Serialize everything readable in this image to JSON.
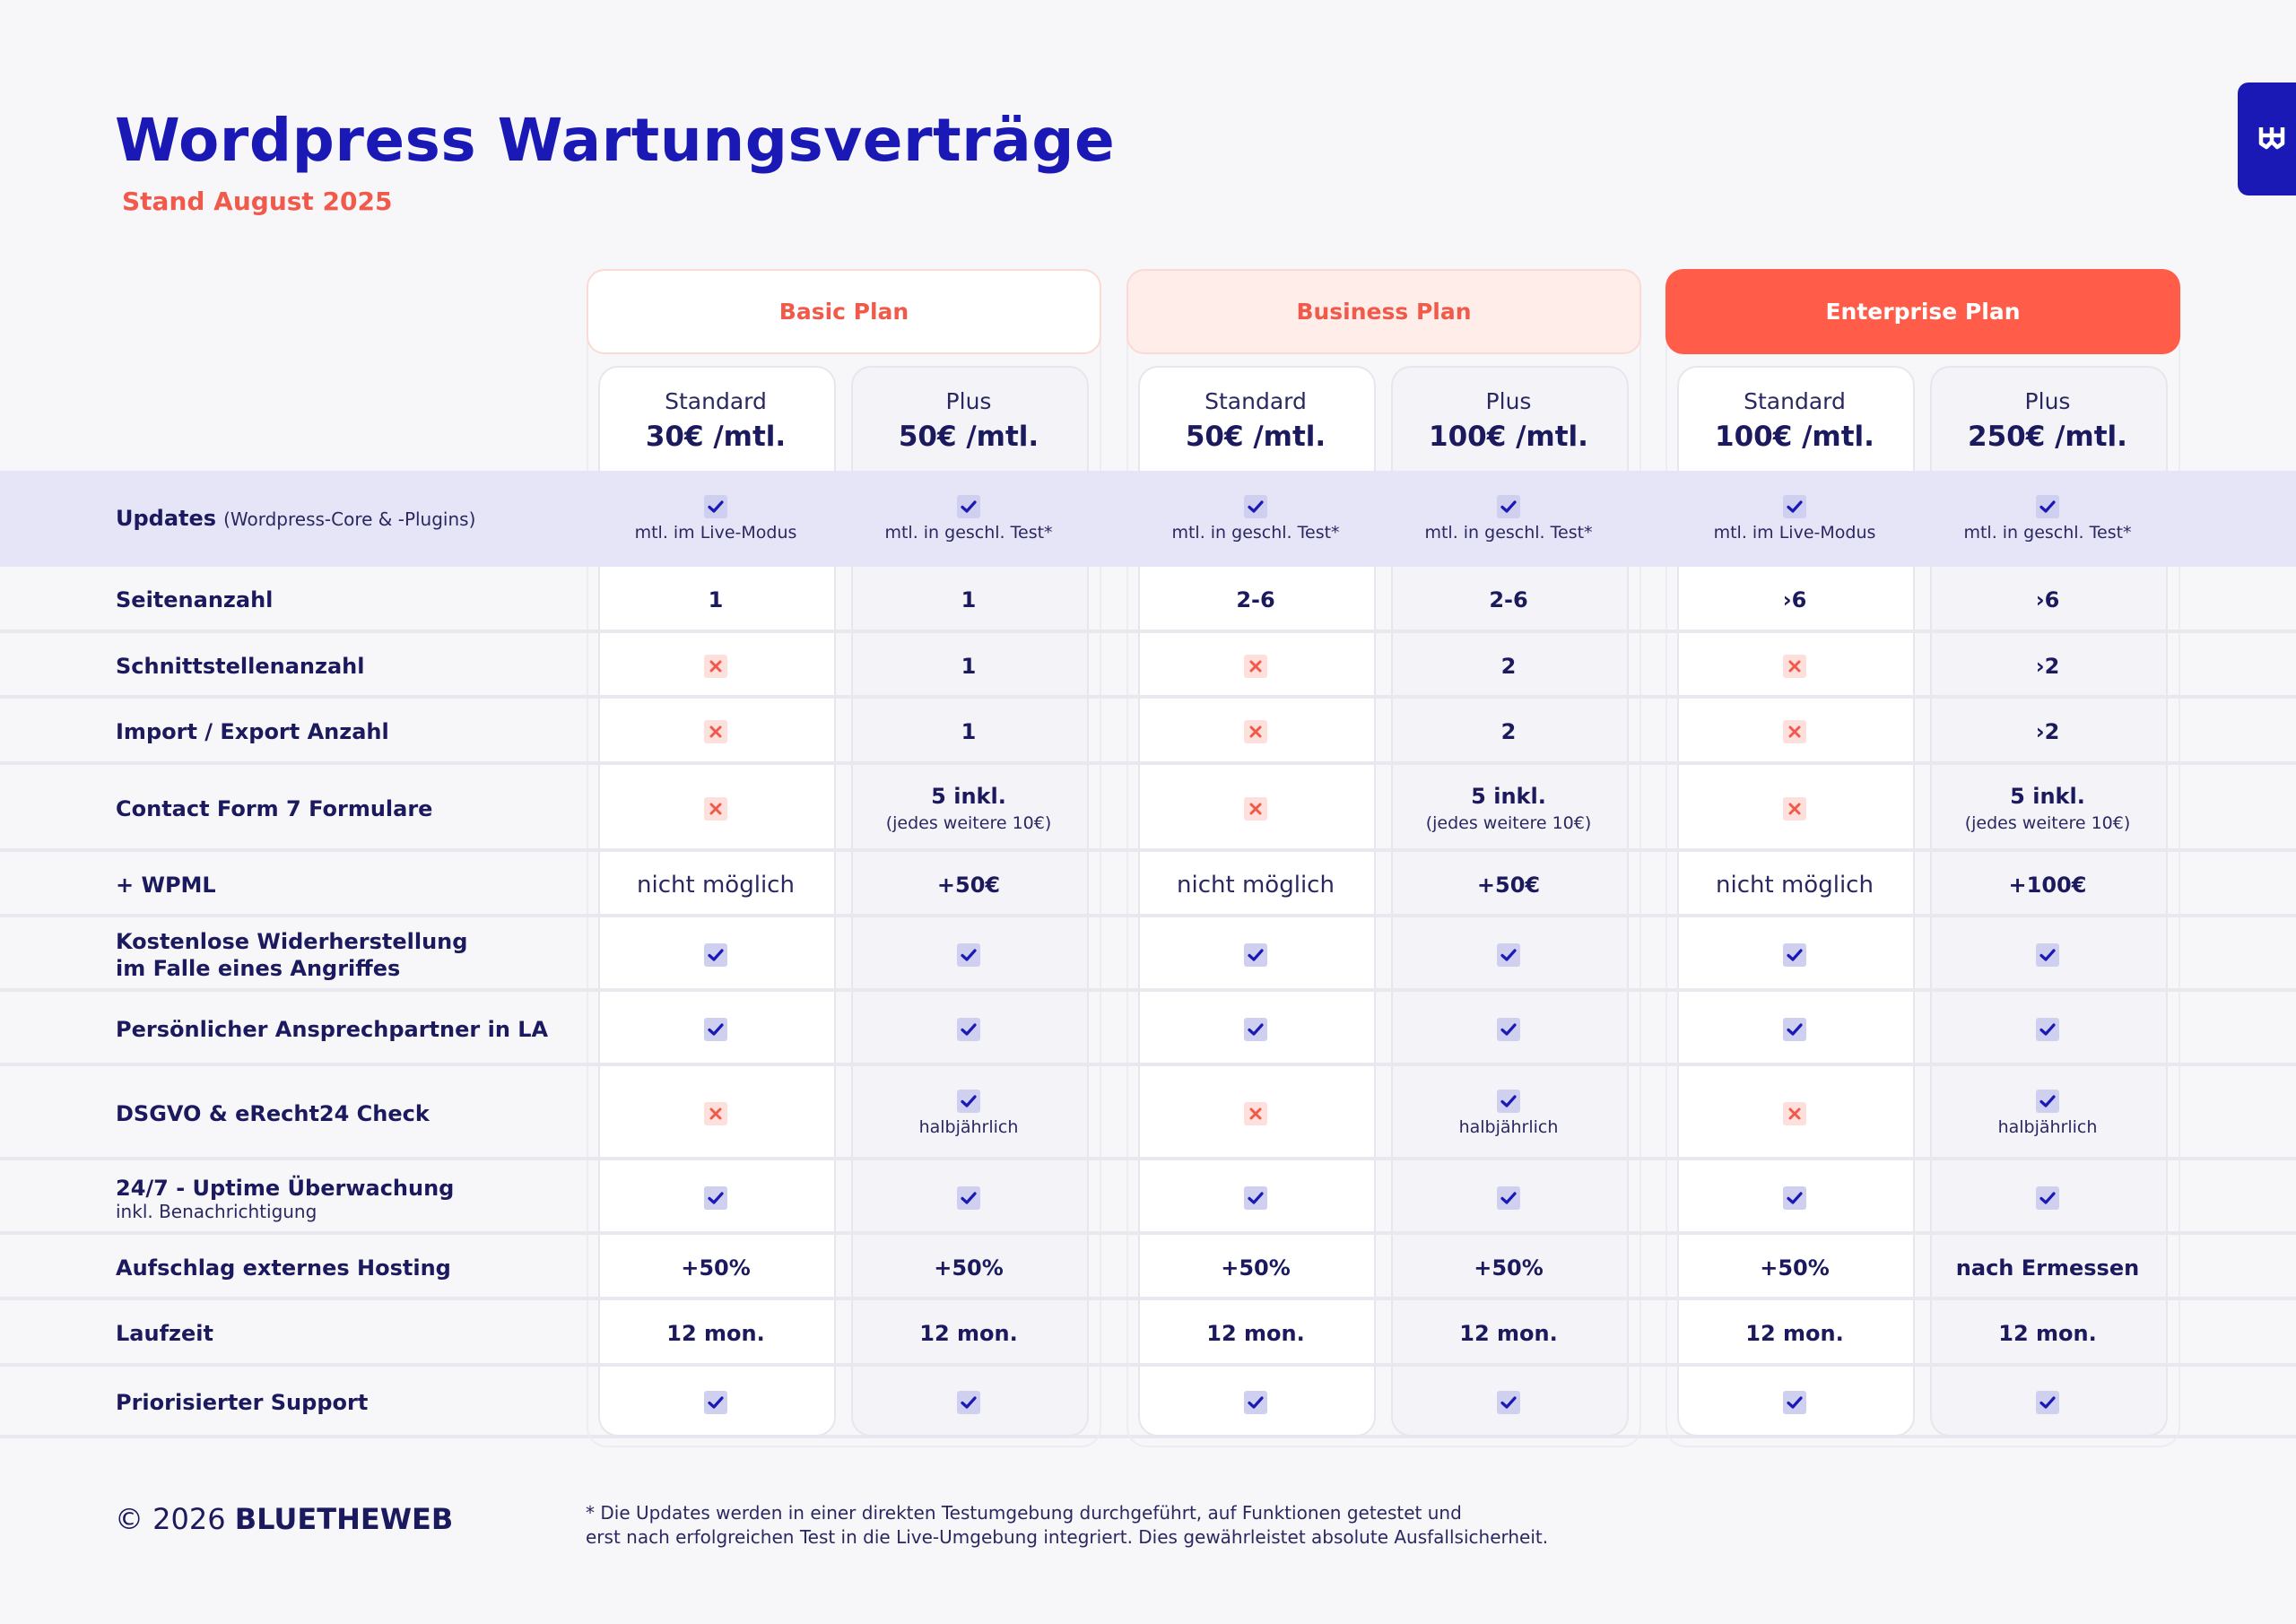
{
  "header": {
    "title": "Wordpress Wartungsverträge",
    "subtitle": "Stand August 2025",
    "brand_icon": "w-logo-icon"
  },
  "plans": [
    {
      "name": "Basic Plan",
      "tiers": [
        {
          "name": "Standard",
          "price": "30€ /mtl."
        },
        {
          "name": "Plus",
          "price": "50€ /mtl."
        }
      ]
    },
    {
      "name": "Business Plan",
      "tiers": [
        {
          "name": "Standard",
          "price": "50€ /mtl."
        },
        {
          "name": "Plus",
          "price": "100€ /mtl."
        }
      ]
    },
    {
      "name": "Enterprise Plan",
      "tiers": [
        {
          "name": "Standard",
          "price": "100€ /mtl."
        },
        {
          "name": "Plus",
          "price": "250€ /mtl."
        }
      ]
    }
  ],
  "rows": [
    {
      "label": "Updates",
      "inline_sub": "(Wordpress-Core & -Plugins)",
      "sub": "",
      "cells": [
        {
          "type": "check",
          "note": "mtl. im Live-Modus"
        },
        {
          "type": "check",
          "note": "mtl. in geschl. Test*"
        },
        {
          "type": "check",
          "note": "mtl. in geschl. Test*"
        },
        {
          "type": "check",
          "note": "mtl. in geschl. Test*"
        },
        {
          "type": "check",
          "note": "mtl. im Live-Modus"
        },
        {
          "type": "check",
          "note": "mtl. in geschl. Test*"
        }
      ]
    },
    {
      "label": "Seitenanzahl",
      "inline_sub": "",
      "sub": "",
      "cells": [
        {
          "type": "value",
          "value": "1"
        },
        {
          "type": "value",
          "value": "1"
        },
        {
          "type": "value",
          "value": "2-6"
        },
        {
          "type": "value",
          "value": "2-6"
        },
        {
          "type": "value",
          "value": "›6"
        },
        {
          "type": "value",
          "value": "›6"
        }
      ]
    },
    {
      "label": "Schnittstellenanzahl",
      "inline_sub": "",
      "sub": "",
      "cells": [
        {
          "type": "cross"
        },
        {
          "type": "value",
          "value": "1"
        },
        {
          "type": "cross"
        },
        {
          "type": "value",
          "value": "2"
        },
        {
          "type": "cross"
        },
        {
          "type": "value",
          "value": "›2"
        }
      ]
    },
    {
      "label": "Import / Export Anzahl",
      "inline_sub": "",
      "sub": "",
      "cells": [
        {
          "type": "cross"
        },
        {
          "type": "value",
          "value": "1"
        },
        {
          "type": "cross"
        },
        {
          "type": "value",
          "value": "2"
        },
        {
          "type": "cross"
        },
        {
          "type": "value",
          "value": "›2"
        }
      ]
    },
    {
      "label": "Contact Form 7 Formulare",
      "inline_sub": "",
      "sub": "",
      "cells": [
        {
          "type": "cross"
        },
        {
          "type": "value",
          "value": "5 inkl.",
          "note": "(jedes weitere 10€)"
        },
        {
          "type": "cross"
        },
        {
          "type": "value",
          "value": "5 inkl.",
          "note": "(jedes weitere 10€)"
        },
        {
          "type": "cross"
        },
        {
          "type": "value",
          "value": "5 inkl.",
          "note": "(jedes weitere 10€)"
        }
      ]
    },
    {
      "label": "+ WPML",
      "inline_sub": "",
      "sub": "",
      "cells": [
        {
          "type": "text",
          "value": "nicht möglich"
        },
        {
          "type": "value",
          "value": "+50€"
        },
        {
          "type": "text",
          "value": "nicht möglich"
        },
        {
          "type": "value",
          "value": "+50€"
        },
        {
          "type": "text",
          "value": "nicht möglich"
        },
        {
          "type": "value",
          "value": "+100€"
        }
      ]
    },
    {
      "label": "Kostenlose Widerherstellung",
      "label2": "im Falle eines Angriffes",
      "inline_sub": "",
      "sub": "",
      "cells": [
        {
          "type": "check"
        },
        {
          "type": "check"
        },
        {
          "type": "check"
        },
        {
          "type": "check"
        },
        {
          "type": "check"
        },
        {
          "type": "check"
        }
      ]
    },
    {
      "label": "Persönlicher Ansprechpartner in LA",
      "inline_sub": "",
      "sub": "",
      "cells": [
        {
          "type": "check"
        },
        {
          "type": "check"
        },
        {
          "type": "check"
        },
        {
          "type": "check"
        },
        {
          "type": "check"
        },
        {
          "type": "check"
        }
      ]
    },
    {
      "label": "DSGVO & eRecht24 Check",
      "inline_sub": "",
      "sub": "",
      "cells": [
        {
          "type": "cross"
        },
        {
          "type": "check",
          "note": "halbjährlich"
        },
        {
          "type": "cross"
        },
        {
          "type": "check",
          "note": "halbjährlich"
        },
        {
          "type": "cross"
        },
        {
          "type": "check",
          "note": "halbjährlich"
        }
      ]
    },
    {
      "label": "24/7 - Uptime Überwachung",
      "inline_sub": "",
      "sub": "inkl. Benachrichtigung",
      "cells": [
        {
          "type": "check"
        },
        {
          "type": "check"
        },
        {
          "type": "check"
        },
        {
          "type": "check"
        },
        {
          "type": "check"
        },
        {
          "type": "check"
        }
      ]
    },
    {
      "label": "Aufschlag externes Hosting",
      "inline_sub": "",
      "sub": "",
      "cells": [
        {
          "type": "value",
          "value": "+50%"
        },
        {
          "type": "value",
          "value": "+50%"
        },
        {
          "type": "value",
          "value": "+50%"
        },
        {
          "type": "value",
          "value": "+50%"
        },
        {
          "type": "value",
          "value": "+50%"
        },
        {
          "type": "value",
          "value": "nach Ermessen"
        }
      ]
    },
    {
      "label": "Laufzeit",
      "inline_sub": "",
      "sub": "",
      "cells": [
        {
          "type": "value",
          "value": "12 mon."
        },
        {
          "type": "value",
          "value": "12 mon."
        },
        {
          "type": "value",
          "value": "12 mon."
        },
        {
          "type": "value",
          "value": "12 mon."
        },
        {
          "type": "value",
          "value": "12 mon."
        },
        {
          "type": "value",
          "value": "12 mon."
        }
      ]
    },
    {
      "label": "Priorisierter Support",
      "inline_sub": "",
      "sub": "",
      "cells": [
        {
          "type": "check"
        },
        {
          "type": "check"
        },
        {
          "type": "check"
        },
        {
          "type": "check"
        },
        {
          "type": "check"
        },
        {
          "type": "check"
        }
      ]
    }
  ],
  "footer": {
    "copyright_prefix": "© 2026",
    "copyright_brand": "BLUETHEWEB",
    "footnote_line1": "* Die Updates werden in einer direkten Testumgebung durchgeführt, auf Funktionen getestet und",
    "footnote_line2": "erst nach erfolgreichen Test in die Live-Umgebung integriert. Dies gewährleistet absolute Ausfallsicherheit."
  },
  "colors": {
    "brand_blue": "#1a19b5",
    "accent_red": "#f15a4a",
    "enterprise_red": "#ff5c4a",
    "highlight_row": "#e6e5f7"
  }
}
